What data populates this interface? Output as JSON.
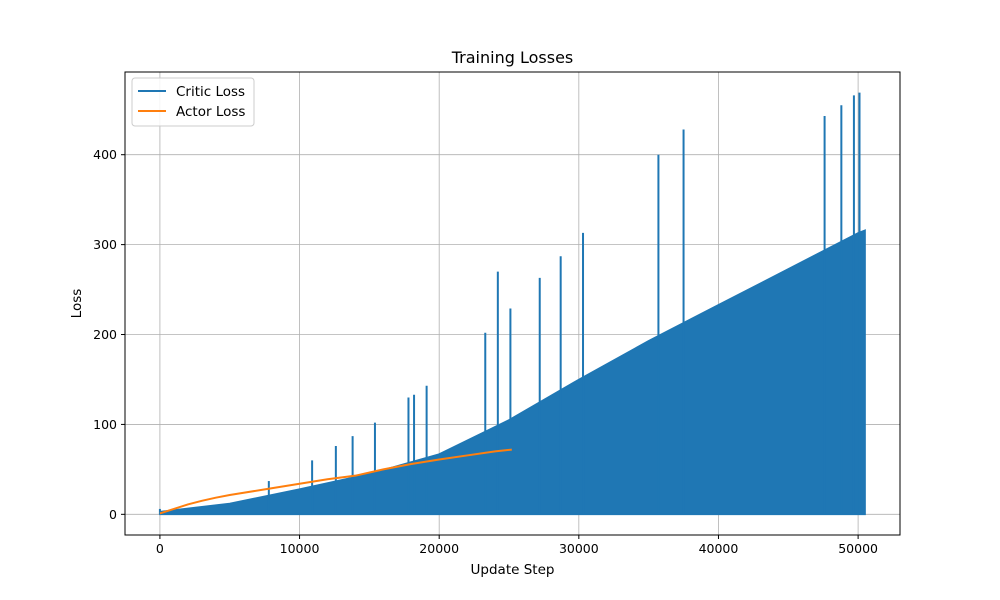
{
  "chart_data": {
    "type": "line",
    "title": "Training Losses",
    "xlabel": "Update Step",
    "ylabel": "Loss",
    "xlim": [
      -2500,
      53000
    ],
    "ylim": [
      -23,
      492
    ],
    "xticks": [
      0,
      10000,
      20000,
      30000,
      40000,
      50000
    ],
    "yticks": [
      0,
      100,
      200,
      300,
      400
    ],
    "grid": true,
    "legend_position": "upper-left",
    "series": [
      {
        "name": "Critic Loss",
        "color": "#1f77b4",
        "description": "oscillating per-step loss; lower band fills from 0 to envelope, with periodic spikes",
        "envelope": {
          "x": [
            0,
            5000,
            10000,
            15000,
            20000,
            25000,
            30000,
            35000,
            40000,
            45000,
            50000,
            50500
          ],
          "y": [
            3,
            12,
            28,
            45,
            67,
            105,
            150,
            193,
            233,
            273,
            313,
            316
          ]
        },
        "spikes": {
          "x": [
            7800,
            10900,
            12600,
            13800,
            15400,
            17800,
            18200,
            19100,
            23300,
            24200,
            25100,
            27200,
            28700,
            30300,
            35700,
            37500,
            47600,
            48800,
            49700,
            50100
          ],
          "y": [
            37,
            60,
            76,
            87,
            102,
            130,
            133,
            143,
            202,
            270,
            229,
            263,
            287,
            313,
            400,
            428,
            443,
            455,
            466,
            469
          ]
        }
      },
      {
        "name": "Actor Loss",
        "color": "#ff7f0e",
        "x": [
          0,
          1000,
          2000,
          3000,
          4000,
          5000,
          6000,
          8000,
          10000,
          12000,
          14000,
          16000,
          18000,
          20000,
          22000,
          24000,
          25200
        ],
        "y": [
          1,
          6,
          11,
          15,
          18.5,
          21.5,
          24,
          29,
          34,
          39,
          43,
          50,
          56,
          61,
          65.5,
          70,
          72
        ]
      }
    ]
  }
}
